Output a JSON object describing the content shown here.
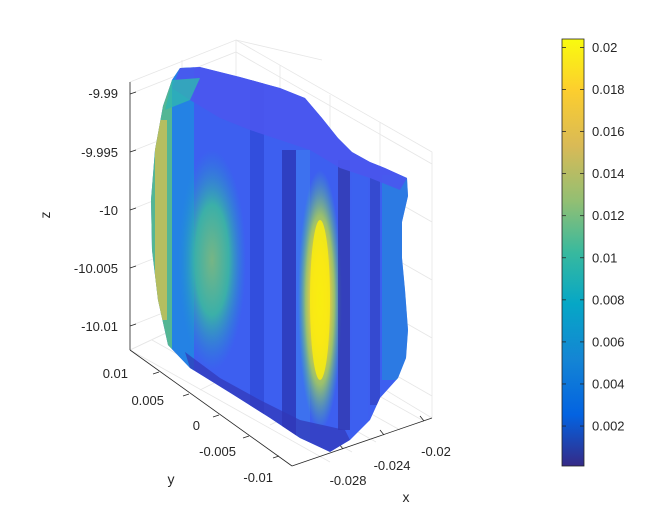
{
  "chart_data": {
    "type": "scatter",
    "subtype": "3d-scatter-surface",
    "title": "",
    "xlabel": "x",
    "ylabel": "y",
    "zlabel": "z",
    "x_ticks": [
      "-0.028",
      "-0.024",
      "-0.02"
    ],
    "y_ticks": [
      "0.01",
      "0.005",
      "0",
      "-0.005",
      "-0.01"
    ],
    "z_ticks": [
      "-9.99",
      "-9.995",
      "-10",
      "-10.005",
      "-10.01"
    ],
    "xlim": [
      -0.029,
      -0.019
    ],
    "ylim": [
      -0.012,
      0.012
    ],
    "zlim": [
      -10.014,
      -9.987
    ],
    "grid": true,
    "colormap": "parula",
    "colorbar": {
      "position": "right",
      "range": [
        0.0001,
        0.0204
      ],
      "ticks": [
        "0.002",
        "0.004",
        "0.006",
        "0.008",
        "0.01",
        "0.012",
        "0.014",
        "0.016",
        "0.018",
        "0.02"
      ]
    }
  }
}
